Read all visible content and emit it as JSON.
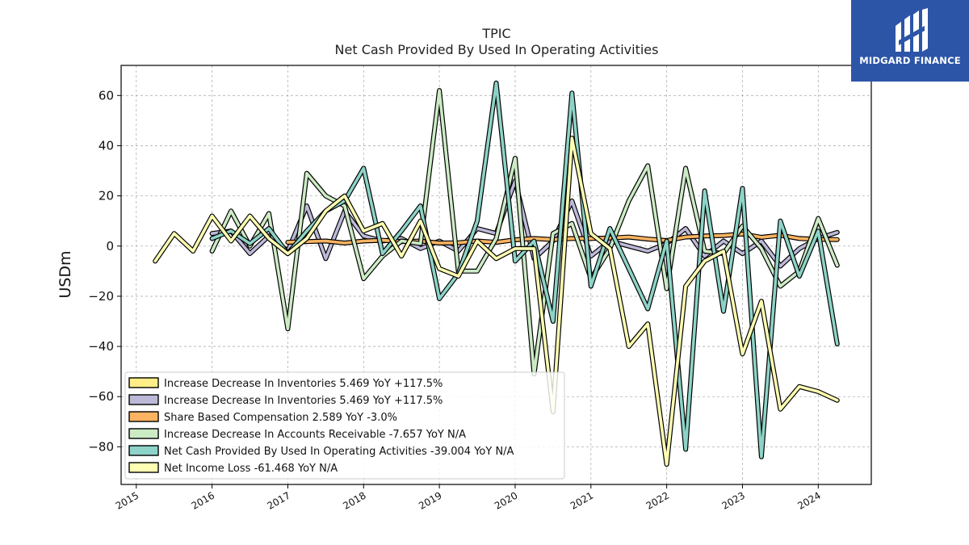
{
  "chart_data": {
    "type": "line",
    "title": "TPIC",
    "subtitle": "Net Cash Provided By Used In Operating Activities",
    "xlabel": "",
    "ylabel": "USDm",
    "xlim": [
      2014.8,
      2024.7
    ],
    "ylim": [
      -95,
      72
    ],
    "yticks": [
      -80,
      -60,
      -40,
      -20,
      0,
      20,
      40,
      60
    ],
    "xticks": [
      2015,
      2016,
      2017,
      2018,
      2019,
      2020,
      2021,
      2022,
      2023,
      2024
    ],
    "xtick_labels": [
      "2015",
      "2016",
      "2017",
      "2018",
      "2019",
      "2020",
      "2021",
      "2022",
      "2023",
      "2024"
    ],
    "grid": true,
    "legend_position": "lower-left",
    "series": [
      {
        "name": "Increase Decrease In Inventories  5.469 YoY +117.5%",
        "color": "#ffee88",
        "points": [
          [
            2016.0,
            5
          ],
          [
            2016.25,
            6
          ],
          [
            2016.5,
            -3
          ],
          [
            2016.75,
            4
          ],
          [
            2017.0,
            -2
          ],
          [
            2017.25,
            16
          ],
          [
            2017.5,
            -5
          ],
          [
            2017.75,
            14
          ],
          [
            2018.0,
            4
          ],
          [
            2018.25,
            2
          ],
          [
            2018.5,
            3
          ],
          [
            2018.75,
            -1
          ],
          [
            2019.0,
            2
          ],
          [
            2019.25,
            -2
          ],
          [
            2019.5,
            7
          ],
          [
            2019.75,
            5
          ],
          [
            2020.0,
            26
          ],
          [
            2020.25,
            -5
          ],
          [
            2020.5,
            2
          ],
          [
            2020.75,
            18
          ],
          [
            2021.0,
            -4
          ],
          [
            2021.25,
            2
          ],
          [
            2021.5,
            0
          ],
          [
            2021.75,
            -2
          ],
          [
            2022.0,
            1
          ],
          [
            2022.25,
            7
          ],
          [
            2022.5,
            -4
          ],
          [
            2022.75,
            2
          ],
          [
            2023.0,
            -3
          ],
          [
            2023.25,
            2
          ],
          [
            2023.5,
            -8
          ],
          [
            2023.75,
            -1
          ],
          [
            2024.0,
            3
          ],
          [
            2024.25,
            5.469
          ]
        ],
        "visible": false
      },
      {
        "name": "Increase Decrease In Inventories  5.469 YoY +117.5%",
        "color": "#bcb9d8",
        "points": [
          [
            2016.0,
            5
          ],
          [
            2016.25,
            6
          ],
          [
            2016.5,
            -3
          ],
          [
            2016.75,
            4
          ],
          [
            2017.0,
            -2
          ],
          [
            2017.25,
            16
          ],
          [
            2017.5,
            -5
          ],
          [
            2017.75,
            14
          ],
          [
            2018.0,
            4
          ],
          [
            2018.25,
            2
          ],
          [
            2018.5,
            3
          ],
          [
            2018.75,
            -1
          ],
          [
            2019.0,
            2
          ],
          [
            2019.25,
            -2
          ],
          [
            2019.5,
            7
          ],
          [
            2019.75,
            5
          ],
          [
            2020.0,
            26
          ],
          [
            2020.25,
            -5
          ],
          [
            2020.5,
            2
          ],
          [
            2020.75,
            18
          ],
          [
            2021.0,
            -4
          ],
          [
            2021.25,
            2
          ],
          [
            2021.5,
            0
          ],
          [
            2021.75,
            -2
          ],
          [
            2022.0,
            1
          ],
          [
            2022.25,
            7
          ],
          [
            2022.5,
            -4
          ],
          [
            2022.75,
            2
          ],
          [
            2023.0,
            -3
          ],
          [
            2023.25,
            2
          ],
          [
            2023.5,
            -8
          ],
          [
            2023.75,
            -1
          ],
          [
            2024.0,
            3
          ],
          [
            2024.25,
            5.469
          ]
        ]
      },
      {
        "name": "Share Based Compensation  2.589 YoY -3.0%",
        "color": "#fdb462",
        "points": [
          [
            2017.0,
            1.5
          ],
          [
            2017.25,
            1.8
          ],
          [
            2017.5,
            2.0
          ],
          [
            2017.75,
            1.2
          ],
          [
            2018.0,
            2.0
          ],
          [
            2018.25,
            2.3
          ],
          [
            2018.5,
            1.8
          ],
          [
            2018.75,
            2.0
          ],
          [
            2019.0,
            1.2
          ],
          [
            2019.25,
            1.3
          ],
          [
            2019.5,
            2.0
          ],
          [
            2019.75,
            1.5
          ],
          [
            2020.0,
            2.5
          ],
          [
            2020.25,
            3.0
          ],
          [
            2020.5,
            2.6
          ],
          [
            2020.75,
            3.0
          ],
          [
            2021.0,
            3.0
          ],
          [
            2021.25,
            3.2
          ],
          [
            2021.5,
            3.6
          ],
          [
            2021.75,
            2.8
          ],
          [
            2022.0,
            2.2
          ],
          [
            2022.25,
            3.6
          ],
          [
            2022.5,
            4.0
          ],
          [
            2022.75,
            4.2
          ],
          [
            2023.0,
            4.8
          ],
          [
            2023.25,
            3.5
          ],
          [
            2023.5,
            4.3
          ],
          [
            2023.75,
            3.0
          ],
          [
            2024.0,
            2.67
          ],
          [
            2024.25,
            2.589
          ]
        ]
      },
      {
        "name": "Increase Decrease In Accounts Receivable  -7.657 YoY N/A",
        "color": "#ccebc5",
        "points": [
          [
            2016.0,
            -2
          ],
          [
            2016.25,
            14
          ],
          [
            2016.5,
            0
          ],
          [
            2016.75,
            13
          ],
          [
            2017.0,
            -33
          ],
          [
            2017.25,
            29
          ],
          [
            2017.5,
            20
          ],
          [
            2017.75,
            16
          ],
          [
            2018.0,
            -13
          ],
          [
            2018.25,
            -4
          ],
          [
            2018.5,
            2
          ],
          [
            2018.75,
            1
          ],
          [
            2019.0,
            62
          ],
          [
            2019.25,
            -10
          ],
          [
            2019.5,
            -10
          ],
          [
            2019.75,
            3
          ],
          [
            2020.0,
            35
          ],
          [
            2020.25,
            -51
          ],
          [
            2020.5,
            5
          ],
          [
            2020.75,
            9
          ],
          [
            2021.0,
            -13
          ],
          [
            2021.25,
            -1
          ],
          [
            2021.5,
            18
          ],
          [
            2021.75,
            32
          ],
          [
            2022.0,
            -17
          ],
          [
            2022.25,
            31
          ],
          [
            2022.5,
            -2
          ],
          [
            2022.75,
            -3
          ],
          [
            2023.0,
            8
          ],
          [
            2023.25,
            -1
          ],
          [
            2023.5,
            -16
          ],
          [
            2023.75,
            -10
          ],
          [
            2024.0,
            11
          ],
          [
            2024.25,
            -7.657
          ]
        ]
      },
      {
        "name": "Net Cash Provided By Used In Operating Activities  -39.004 YoY N/A",
        "color": "#8dd3c7",
        "points": [
          [
            2016.0,
            3
          ],
          [
            2016.25,
            6
          ],
          [
            2016.5,
            1
          ],
          [
            2016.75,
            7
          ],
          [
            2017.0,
            -3
          ],
          [
            2017.25,
            6
          ],
          [
            2017.5,
            14
          ],
          [
            2017.75,
            18
          ],
          [
            2018.0,
            31
          ],
          [
            2018.25,
            -3
          ],
          [
            2018.5,
            6
          ],
          [
            2018.75,
            16
          ],
          [
            2019.0,
            -21
          ],
          [
            2019.25,
            -11
          ],
          [
            2019.5,
            10
          ],
          [
            2019.75,
            65
          ],
          [
            2020.0,
            -6
          ],
          [
            2020.25,
            2
          ],
          [
            2020.5,
            -30
          ],
          [
            2020.75,
            61
          ],
          [
            2021.0,
            -16
          ],
          [
            2021.25,
            7
          ],
          [
            2021.5,
            -9
          ],
          [
            2021.75,
            -25
          ],
          [
            2022.0,
            2
          ],
          [
            2022.25,
            -81
          ],
          [
            2022.5,
            22
          ],
          [
            2022.75,
            -26
          ],
          [
            2023.0,
            23
          ],
          [
            2023.25,
            -84
          ],
          [
            2023.5,
            10
          ],
          [
            2023.75,
            -12
          ],
          [
            2024.0,
            6
          ],
          [
            2024.25,
            -39.004
          ]
        ]
      },
      {
        "name": "Net Income Loss  -61.468 YoY N/A",
        "color": "#ffffb3",
        "points": [
          [
            2015.25,
            -6
          ],
          [
            2015.5,
            5
          ],
          [
            2015.75,
            -2
          ],
          [
            2016.0,
            12
          ],
          [
            2016.25,
            2
          ],
          [
            2016.5,
            12
          ],
          [
            2016.75,
            3
          ],
          [
            2017.0,
            -3
          ],
          [
            2017.25,
            3
          ],
          [
            2017.5,
            14
          ],
          [
            2017.75,
            20
          ],
          [
            2018.0,
            6
          ],
          [
            2018.25,
            9
          ],
          [
            2018.5,
            -4
          ],
          [
            2018.75,
            10
          ],
          [
            2019.0,
            -9
          ],
          [
            2019.25,
            -12
          ],
          [
            2019.5,
            2
          ],
          [
            2019.75,
            -5
          ],
          [
            2020.0,
            -1
          ],
          [
            2020.25,
            -1
          ],
          [
            2020.5,
            -66
          ],
          [
            2020.75,
            43
          ],
          [
            2021.0,
            5
          ],
          [
            2021.25,
            -1
          ],
          [
            2021.5,
            -40
          ],
          [
            2021.75,
            -31
          ],
          [
            2022.0,
            -87
          ],
          [
            2022.25,
            -16
          ],
          [
            2022.5,
            -6
          ],
          [
            2022.75,
            -2
          ],
          [
            2023.0,
            -43
          ],
          [
            2023.25,
            -22
          ],
          [
            2023.5,
            -65
          ],
          [
            2023.75,
            -56
          ],
          [
            2024.0,
            -58
          ],
          [
            2024.25,
            -61.468
          ]
        ]
      }
    ]
  },
  "brand": {
    "name": "MIDGARD FINANCE"
  }
}
